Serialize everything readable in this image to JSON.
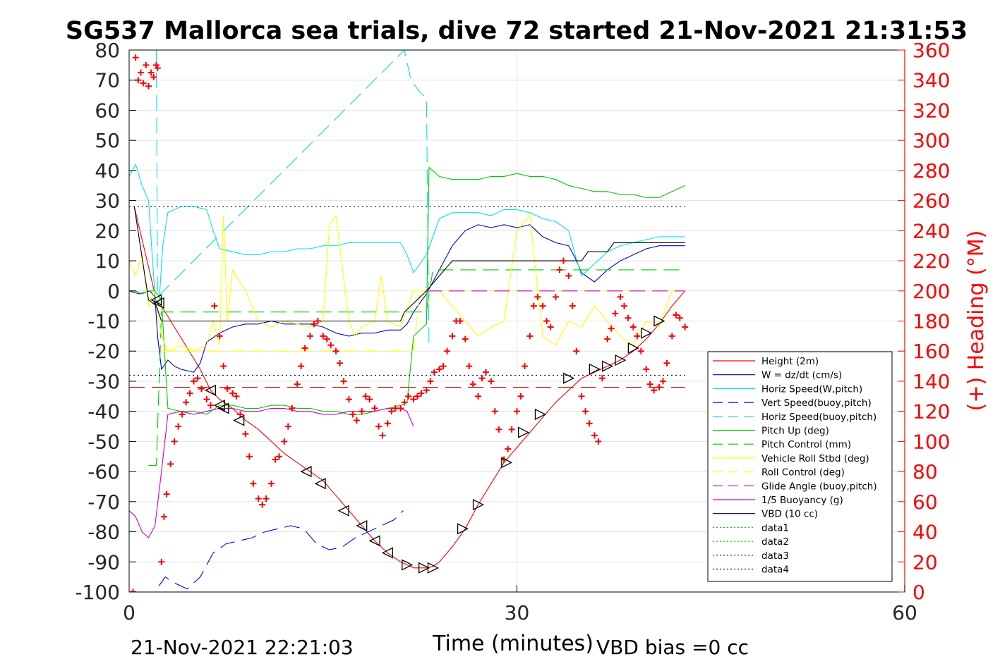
{
  "chart_data": {
    "type": "line",
    "title": "SG537 Mallorca sea trials, dive 72 started 21-Nov-2021 21:31:53",
    "xlabel": "Time (minutes)",
    "ylabel_right": "(+) Heading (°M)",
    "xlim": [
      0,
      60
    ],
    "ylim": [
      -100,
      80
    ],
    "ylim_right": [
      0,
      360
    ],
    "x_ticks": [
      "0",
      "30",
      "60"
    ],
    "y_ticks": [
      "80",
      "70",
      "60",
      "50",
      "40",
      "30",
      "20",
      "10",
      "0",
      "-10",
      "-20",
      "-30",
      "-40",
      "-50",
      "-60",
      "-70",
      "-80",
      "-90",
      "-100"
    ],
    "y_ticks_right": [
      "360",
      "340",
      "320",
      "300",
      "280",
      "260",
      "240",
      "220",
      "200",
      "180",
      "160",
      "140",
      "120",
      "100",
      "80",
      "60",
      "40",
      "20",
      "0"
    ],
    "grid": true,
    "legend_position": "lower-right",
    "footer_left": "21-Nov-2021 22:21:03",
    "footer_right": "VBD bias =0 cc",
    "colors": {
      "heading": "#ff0000",
      "axis_right": "#ff0000"
    },
    "series": [
      {
        "name": "Height (2m)",
        "color": "#ff0000",
        "style": "solid",
        "x": [
          0.4,
          2.1,
          2.5,
          3.5,
          4.5,
          5.5,
          6.3,
          7,
          8,
          9,
          10,
          11,
          12,
          13,
          14,
          15,
          16,
          17,
          18,
          19,
          20,
          21,
          21.5,
          22,
          22.5,
          23,
          23.5,
          24,
          25,
          26,
          27,
          28,
          29,
          30,
          31,
          32,
          33,
          34,
          35,
          36,
          37,
          38,
          39,
          40,
          41,
          42,
          43
        ],
        "y": [
          28,
          -3,
          -5,
          -12,
          -19,
          -26,
          -33,
          -36,
          -39,
          -43,
          -46,
          -50,
          -54,
          -57,
          -60,
          -63,
          -68,
          -73,
          -78,
          -83,
          -87,
          -90,
          -91,
          -92,
          -92,
          -92,
          -91.5,
          -90,
          -85,
          -79,
          -71,
          -64,
          -57,
          -52,
          -47,
          -42,
          -37,
          -33,
          -29,
          -27,
          -25,
          -23,
          -20,
          -16,
          -11,
          -5,
          0
        ]
      },
      {
        "name": "W = dz/dt (cm/s)",
        "color": "#0000cc",
        "style": "solid",
        "x": [
          0,
          0.8,
          1.6,
          2.0,
          2.2,
          2.5,
          3,
          3.5,
          4,
          5,
          5.5,
          6,
          7,
          8,
          9,
          10,
          11,
          12,
          13,
          14,
          15,
          16,
          17,
          18,
          19,
          20,
          20.5,
          21,
          21.5,
          22,
          23,
          24,
          25,
          26,
          27,
          28,
          29,
          30,
          31,
          32,
          33,
          34,
          34.5,
          35,
          36,
          37,
          38,
          39,
          40,
          41,
          42,
          43
        ],
        "y": [
          0,
          -1,
          0,
          -2,
          -15,
          -26,
          -23,
          -25,
          -26,
          -27,
          -24,
          -17,
          -14,
          -12,
          -11,
          -11,
          -10,
          -11,
          -11,
          -11,
          -12,
          -14,
          -15,
          -14,
          -14,
          -13,
          -13,
          -13,
          -11,
          -7,
          -1,
          7,
          15,
          20,
          22,
          21,
          22,
          21,
          22,
          18,
          16,
          15,
          11,
          6,
          3,
          7,
          10,
          12,
          14,
          15,
          15,
          15
        ]
      },
      {
        "name": "Horiz Speed(W,pitch)",
        "color": "#00e5e5",
        "style": "solid",
        "x": [
          0,
          0.5,
          1,
          1.5,
          2,
          2.3,
          2.6,
          3,
          3.5,
          4,
          5,
          6,
          6.5,
          7,
          8,
          9,
          10,
          11,
          12,
          13,
          14,
          15,
          16,
          17,
          18,
          19,
          20,
          21,
          21.5,
          22,
          23,
          24,
          25,
          26,
          27,
          28,
          29,
          30,
          31,
          32,
          33,
          34,
          34.5,
          35,
          36,
          37,
          38,
          39,
          40,
          41,
          42,
          43
        ],
        "y": [
          38,
          42,
          35,
          30,
          -2,
          -5,
          15,
          26,
          27,
          28,
          28,
          27,
          20,
          14,
          13,
          12,
          12,
          13,
          13,
          14,
          14,
          15,
          15,
          16,
          16,
          16,
          16,
          16,
          12,
          6,
          12,
          24,
          26,
          26,
          26,
          25,
          27,
          27,
          26,
          24,
          23,
          20,
          12,
          5,
          9,
          13,
          15,
          16,
          17,
          18,
          18,
          18
        ]
      },
      {
        "name": "Vert Speed(buoy,pitch)",
        "color": "#0000ff",
        "style": "dashed",
        "x": [
          2.3,
          2.8,
          3.5,
          4.5,
          5.5,
          6.5,
          7.5,
          8.5,
          9.5,
          10.5,
          11.5,
          12.5,
          13.5,
          14.5,
          15.5,
          16.5,
          17.5,
          18.5,
          19.5,
          20.5,
          21.2
        ],
        "y": [
          -98,
          -95,
          -97,
          -99,
          -95,
          -87,
          -84,
          -83,
          -82,
          -80,
          -79,
          -78,
          -79,
          -84,
          -86,
          -85,
          -82,
          -80,
          -78,
          -76,
          -73
        ]
      },
      {
        "name": "Horiz Speed(buoy,pitch)",
        "color": "#00e5e5",
        "style": "dashed",
        "x": [
          2.1,
          2.2,
          21.3,
          21.8,
          22.5,
          23,
          23.2
        ],
        "y": [
          80,
          -2,
          80,
          70,
          66,
          64,
          -18
        ]
      },
      {
        "name": "Pitch Up (deg)",
        "color": "#00cc00",
        "style": "solid",
        "x": [
          0,
          0.5,
          1,
          1.5,
          2,
          2.5,
          3,
          4,
          5,
          6,
          7,
          8,
          9,
          10,
          11,
          12,
          13,
          14,
          15,
          16,
          17,
          18,
          19,
          20,
          21,
          21.5,
          22,
          23,
          23.2,
          24,
          25,
          26,
          27,
          28,
          29,
          30,
          31,
          32,
          33,
          34,
          35,
          36,
          37,
          38,
          39,
          40,
          41,
          42,
          43
        ],
        "y": [
          0,
          0,
          -1,
          0,
          0,
          -3,
          -39,
          -40,
          -40,
          -41,
          -38,
          -38,
          -39,
          -39,
          -38,
          -38,
          -39,
          -39,
          -40,
          -40,
          -41,
          -41,
          -40,
          -39,
          -38,
          -37,
          -15,
          -11,
          41,
          38,
          37,
          37,
          37,
          38,
          38,
          39,
          38,
          38,
          37,
          35,
          34,
          33,
          33,
          32,
          32,
          31,
          31,
          33,
          35
        ]
      },
      {
        "name": "Pitch Control (mm)",
        "color": "#00cc00",
        "style": "dashed",
        "x": [
          1.5,
          2.1,
          2.5,
          23,
          23.5,
          43
        ],
        "y": [
          -58,
          -58,
          -7,
          -7,
          7,
          7
        ]
      },
      {
        "name": "Vehicle Roll Stbd (deg)",
        "color": "#ffff00",
        "style": "solid",
        "x": [
          0,
          0.5,
          1,
          1.5,
          2,
          2.5,
          3,
          4,
          5,
          6,
          6.5,
          7,
          7.3,
          7.6,
          8,
          9,
          10,
          11,
          12,
          13,
          14,
          15,
          15.5,
          16,
          17,
          17.5,
          18,
          19,
          19.5,
          20,
          21,
          22,
          23,
          24,
          25,
          26,
          27,
          28,
          29,
          30,
          31,
          32,
          33,
          34,
          35,
          36,
          37,
          38,
          39,
          40,
          41,
          42,
          43
        ],
        "y": [
          10,
          5,
          12,
          -5,
          0,
          -15,
          -20,
          -18,
          -20,
          -18,
          -10,
          -18,
          25,
          -10,
          7,
          0,
          -10,
          -12,
          -10,
          -11,
          -12,
          -10,
          22,
          25,
          -10,
          -15,
          -12,
          -10,
          5,
          -10,
          -12,
          0,
          0,
          0,
          -5,
          -10,
          -15,
          -12,
          -10,
          20,
          25,
          -15,
          -18,
          -10,
          -12,
          -5,
          -10,
          -15,
          -18,
          -10,
          -12,
          0,
          0
        ]
      },
      {
        "name": "Roll Control (deg)",
        "color": "#ffff00",
        "style": "dashed",
        "x": [
          2.5,
          22,
          22.5,
          43
        ],
        "y": [
          -20,
          -20,
          0,
          0
        ]
      },
      {
        "name": "Glide Angle (buoy,pitch)",
        "color": "#cc00cc",
        "style": "dashed",
        "x": [
          23,
          43
        ],
        "y": [
          0,
          0
        ]
      },
      {
        "name": "1/5 Buoyancy (g)",
        "color": "#cc00cc",
        "style": "solid",
        "x": [
          0,
          0.5,
          1,
          1.5,
          2,
          2.5,
          3,
          4,
          5,
          6,
          7,
          8,
          9,
          10,
          11,
          12,
          13,
          14,
          15,
          16,
          17,
          18,
          19,
          20,
          21,
          21.5,
          22
        ],
        "y": [
          -73,
          -75,
          -80,
          -82,
          -78,
          -60,
          -41,
          -40,
          -41,
          -40,
          -39,
          -39,
          -40,
          -40,
          -39,
          -39,
          -40,
          -40,
          -41,
          -41,
          -40,
          -40,
          -40,
          -39,
          -39,
          -40,
          -45
        ]
      },
      {
        "name": "VBD (10 cc)",
        "color": "#000000",
        "style": "solid",
        "x": [
          0.4,
          1.5,
          2.1,
          2.5,
          7,
          12,
          17,
          21,
          21.3,
          23,
          24,
          25,
          26,
          27,
          28,
          29,
          30,
          31,
          32,
          33,
          34,
          35,
          35.5,
          36,
          37,
          37.5,
          38,
          39,
          40,
          41,
          42,
          43
        ],
        "y": [
          28,
          -3,
          -5,
          -10,
          -10,
          -10,
          -10,
          -10,
          -7,
          0,
          5,
          10,
          10,
          10,
          10,
          10,
          10,
          10,
          10,
          10,
          10,
          10,
          13,
          13,
          13,
          16,
          16,
          16,
          16,
          16,
          16,
          16
        ]
      },
      {
        "name": "data1",
        "color": "#00cc00",
        "style": "dotted",
        "x": [],
        "y": []
      },
      {
        "name": "data2",
        "color": "#00cc00",
        "style": "dotted",
        "x": [],
        "y": []
      },
      {
        "name": "data3",
        "color": "#000080",
        "style": "dotted",
        "x": [
          0,
          43
        ],
        "y": [
          28,
          28
        ]
      },
      {
        "name": "data4",
        "color": "#000080",
        "style": "dotted",
        "x": [
          0,
          43
        ],
        "y": [
          -28,
          -28
        ]
      }
    ],
    "reference_lines": [
      {
        "color": "#cc0000",
        "style": "dashed",
        "y": -32,
        "x": [
          0,
          43
        ]
      }
    ],
    "heading": {
      "marker": "+",
      "color": "#ff0000",
      "x": [
        0.3,
        0.5,
        0.7,
        0.9,
        1.1,
        1.3,
        1.5,
        1.7,
        1.9,
        2.1,
        2.2,
        2.5,
        2.7,
        2.9,
        3.2,
        3.5,
        3.8,
        4.1,
        4.4,
        4.7,
        5.0,
        5.3,
        5.6,
        6.0,
        6.3,
        6.6,
        7.0,
        7.3,
        7.6,
        8.0,
        8.3,
        8.6,
        9.0,
        9.3,
        9.6,
        10.0,
        10.3,
        10.6,
        11.0,
        11.3,
        11.6,
        12.0,
        12.3,
        12.6,
        13.0,
        13.3,
        13.6,
        14.0,
        14.3,
        14.6,
        15.0,
        15.3,
        15.6,
        16.0,
        16.3,
        16.6,
        17.0,
        17.3,
        17.6,
        18.0,
        18.3,
        18.6,
        19.0,
        19.3,
        19.6,
        20.0,
        20.3,
        20.6,
        21.0,
        21.3,
        21.6,
        22.0,
        22.3,
        22.6,
        23.0,
        23.3,
        23.6,
        24.0,
        24.3,
        24.6,
        25.0,
        25.3,
        25.6,
        26.0,
        26.3,
        26.6,
        27.0,
        27.3,
        27.6,
        28.0,
        28.3,
        28.6,
        29.0,
        29.3,
        29.6,
        30.0,
        30.3,
        30.6,
        31.0,
        31.3,
        31.6,
        32.0,
        32.3,
        32.6,
        33.0,
        33.3,
        33.6,
        34.0,
        34.3,
        34.6,
        35.0,
        35.3,
        35.6,
        36.0,
        36.3,
        36.6,
        37.0,
        37.3,
        37.6,
        38.0,
        38.3,
        38.6,
        39.0,
        39.3,
        39.6,
        40.0,
        40.3,
        40.6,
        41.0,
        41.3,
        41.6,
        42.0,
        42.3,
        42.6,
        43.0
      ],
      "y": [
        0,
        355,
        340,
        345,
        338,
        350,
        336,
        345,
        342,
        350,
        348,
        20,
        50,
        65,
        85,
        100,
        110,
        118,
        126,
        132,
        140,
        142,
        135,
        128,
        124,
        190,
        170,
        150,
        135,
        132,
        130,
        118,
        105,
        90,
        72,
        62,
        58,
        62,
        72,
        88,
        90,
        100,
        110,
        122,
        138,
        150,
        162,
        170,
        178,
        180,
        170,
        168,
        164,
        160,
        152,
        140,
        128,
        118,
        114,
        120,
        130,
        128,
        122,
        110,
        104,
        112,
        120,
        122,
        122,
        126,
        130,
        128,
        130,
        132,
        134,
        140,
        146,
        148,
        150,
        160,
        170,
        180,
        180,
        168,
        150,
        138,
        130,
        142,
        146,
        140,
        120,
        108,
        88,
        95,
        108,
        120,
        130,
        150,
        170,
        190,
        196,
        190,
        180,
        176,
        196,
        214,
        220,
        210,
        190,
        160,
        130,
        120,
        112,
        104,
        100,
        142,
        168,
        175,
        185,
        196,
        190,
        182,
        176,
        170,
        160,
        148,
        138,
        134,
        136,
        140,
        152,
        170,
        184,
        182,
        176
      ]
    },
    "trajectory_markers": {
      "marker": "triangle",
      "color": "#000000",
      "x": [
        2.1,
        2.3,
        6.3,
        7.0,
        7.3,
        8.5,
        13.7,
        14.8,
        16.6,
        18.0,
        19.0,
        20.0,
        21.5,
        22.8,
        23.5,
        25.8,
        27.0,
        29.2,
        30.5,
        31.8,
        34.0,
        36.0,
        37.0,
        38.0,
        39.0,
        40.0,
        41.0
      ],
      "y": [
        -3,
        -4,
        -33,
        -38,
        -39,
        -43,
        -60,
        -64,
        -73,
        -78,
        -83,
        -87,
        -91,
        -92,
        -92,
        -79,
        -71,
        -57,
        -47,
        -41,
        -29,
        -26,
        -25,
        -23,
        -19,
        -14,
        -10
      ]
    }
  }
}
